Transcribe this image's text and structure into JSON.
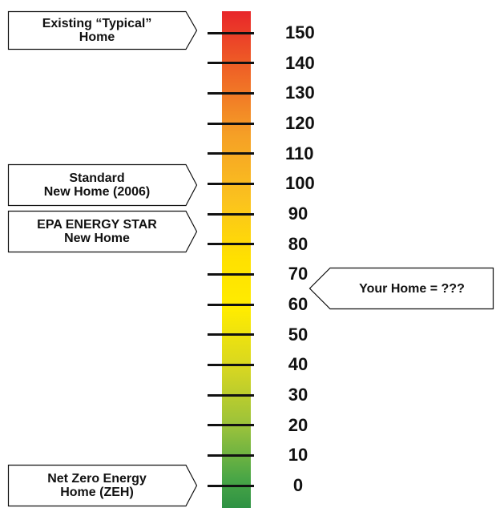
{
  "scale": {
    "ticks": [
      {
        "value": 150,
        "label": "150"
      },
      {
        "value": 140,
        "label": "140"
      },
      {
        "value": 130,
        "label": "130"
      },
      {
        "value": 120,
        "label": "120"
      },
      {
        "value": 110,
        "label": "110"
      },
      {
        "value": 100,
        "label": "100"
      },
      {
        "value": 90,
        "label": "90"
      },
      {
        "value": 80,
        "label": "80"
      },
      {
        "value": 70,
        "label": "70"
      },
      {
        "value": 60,
        "label": "60"
      },
      {
        "value": 50,
        "label": "50"
      },
      {
        "value": 40,
        "label": "40"
      },
      {
        "value": 30,
        "label": "30"
      },
      {
        "value": 20,
        "label": "20"
      },
      {
        "value": 10,
        "label": "10"
      },
      {
        "value": 0,
        "label": "0"
      }
    ],
    "colors": [
      "#e8262a",
      "#f5a026",
      "#ffe100",
      "#97c13c",
      "#2e9244"
    ]
  },
  "callouts": {
    "existing_home": {
      "text": "Existing “Typical”\nHome",
      "value": 150
    },
    "standard_new_home": {
      "text": "Standard\nNew Home (2006)",
      "value": 100
    },
    "energy_star": {
      "text": "EPA ENERGY STAR\nNew Home",
      "value": 85
    },
    "net_zero": {
      "text": "Net Zero Energy\nHome (ZEH)",
      "value": 0
    },
    "your_home": {
      "text": "Your Home = ???",
      "value": 65
    }
  }
}
